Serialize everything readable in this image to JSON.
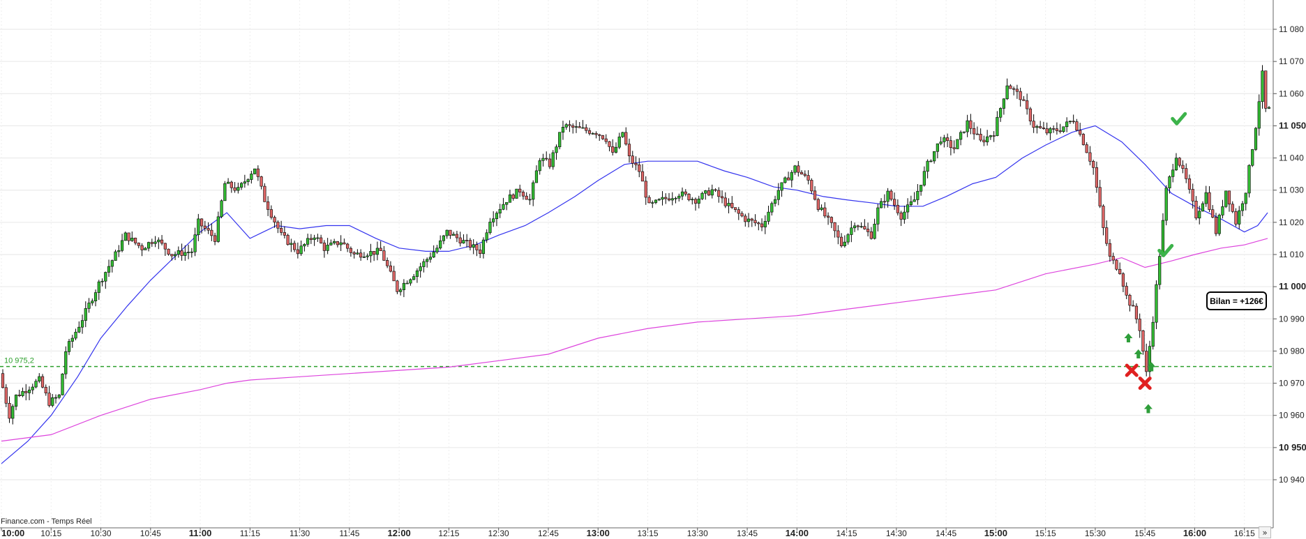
{
  "chart_data": {
    "type": "candlestick",
    "source_label": "Finance.com - Temps Réel",
    "reference_line": {
      "value": 10975.2,
      "label": "10 975,2",
      "color": "#2ca02c"
    },
    "bilan_label": "Bilan = +126€",
    "x_range": [
      "10:00",
      "16:22"
    ],
    "y_range": [
      10930,
      11088
    ],
    "x_ticks": [
      {
        "time": "10:00",
        "label": "10:00",
        "bold": true
      },
      {
        "time": "10:15",
        "label": "10:15",
        "bold": false
      },
      {
        "time": "10:30",
        "label": "10:30",
        "bold": false
      },
      {
        "time": "10:45",
        "label": "10:45",
        "bold": false
      },
      {
        "time": "11:00",
        "label": "11:00",
        "bold": true
      },
      {
        "time": "11:15",
        "label": "11:15",
        "bold": false
      },
      {
        "time": "11:30",
        "label": "11:30",
        "bold": false
      },
      {
        "time": "11:45",
        "label": "11:45",
        "bold": false
      },
      {
        "time": "12:00",
        "label": "12:00",
        "bold": true
      },
      {
        "time": "12:15",
        "label": "12:15",
        "bold": false
      },
      {
        "time": "12:30",
        "label": "12:30",
        "bold": false
      },
      {
        "time": "12:45",
        "label": "12:45",
        "bold": false
      },
      {
        "time": "13:00",
        "label": "13:00",
        "bold": true
      },
      {
        "time": "13:15",
        "label": "13:15",
        "bold": false
      },
      {
        "time": "13:30",
        "label": "13:30",
        "bold": false
      },
      {
        "time": "13:45",
        "label": "13:45",
        "bold": false
      },
      {
        "time": "14:00",
        "label": "14:00",
        "bold": true
      },
      {
        "time": "14:15",
        "label": "14:15",
        "bold": false
      },
      {
        "time": "14:30",
        "label": "14:30",
        "bold": false
      },
      {
        "time": "14:45",
        "label": "14:45",
        "bold": false
      },
      {
        "time": "15:00",
        "label": "15:00",
        "bold": true
      },
      {
        "time": "15:15",
        "label": "15:15",
        "bold": false
      },
      {
        "time": "15:30",
        "label": "15:30",
        "bold": false
      },
      {
        "time": "15:45",
        "label": "15:45",
        "bold": false
      },
      {
        "time": "16:00",
        "label": "16:00",
        "bold": true
      },
      {
        "time": "16:15",
        "label": "16:15",
        "bold": false
      }
    ],
    "y_ticks": [
      {
        "value": 11080,
        "label": "11 080",
        "bold": false
      },
      {
        "value": 11070,
        "label": "11 070",
        "bold": false
      },
      {
        "value": 11060,
        "label": "11 060",
        "bold": false
      },
      {
        "value": 11050,
        "label": "11 050",
        "bold": true
      },
      {
        "value": 11040,
        "label": "11 040",
        "bold": false
      },
      {
        "value": 11030,
        "label": "11 030",
        "bold": false
      },
      {
        "value": 11020,
        "label": "11 020",
        "bold": false
      },
      {
        "value": 11010,
        "label": "11 010",
        "bold": false
      },
      {
        "value": 11000,
        "label": "11 000",
        "bold": true
      },
      {
        "value": 10990,
        "label": "10 990",
        "bold": false
      },
      {
        "value": 10980,
        "label": "10 980",
        "bold": false
      },
      {
        "value": 10970,
        "label": "10 970",
        "bold": false
      },
      {
        "value": 10960,
        "label": "10 960",
        "bold": false
      },
      {
        "value": 10950,
        "label": "10 950",
        "bold": true
      },
      {
        "value": 10940,
        "label": "10 940",
        "bold": false
      }
    ],
    "price_path": [
      [
        "10:00",
        10973
      ],
      [
        "10:03",
        10960
      ],
      [
        "10:05",
        10966
      ],
      [
        "10:08",
        10968
      ],
      [
        "10:12",
        10971
      ],
      [
        "10:15",
        10964
      ],
      [
        "10:18",
        10966
      ],
      [
        "10:20",
        10980
      ],
      [
        "10:25",
        10990
      ],
      [
        "10:30",
        11001
      ],
      [
        "10:35",
        11010
      ],
      [
        "10:38",
        11016
      ],
      [
        "10:43",
        11012
      ],
      [
        "10:47",
        11015
      ],
      [
        "10:52",
        11010
      ],
      [
        "10:58",
        11011
      ],
      [
        "11:00",
        11020
      ],
      [
        "11:05",
        11015
      ],
      [
        "11:08",
        11032
      ],
      [
        "11:12",
        11030
      ],
      [
        "11:17",
        11037
      ],
      [
        "11:20",
        11027
      ],
      [
        "11:25",
        11016
      ],
      [
        "11:30",
        11011
      ],
      [
        "11:35",
        11016
      ],
      [
        "11:38",
        11012
      ],
      [
        "11:43",
        11014
      ],
      [
        "11:47",
        11010
      ],
      [
        "11:55",
        11011
      ],
      [
        "12:00",
        10999
      ],
      [
        "12:05",
        11004
      ],
      [
        "12:12",
        11012
      ],
      [
        "12:15",
        11017
      ],
      [
        "12:20",
        11014
      ],
      [
        "12:25",
        11011
      ],
      [
        "12:28",
        11021
      ],
      [
        "12:33",
        11027
      ],
      [
        "12:37",
        11030
      ],
      [
        "12:40",
        11027
      ],
      [
        "12:43",
        11040
      ],
      [
        "12:46",
        11038
      ],
      [
        "12:50",
        11050
      ],
      [
        "12:55",
        11049
      ],
      [
        "13:00",
        11048
      ],
      [
        "13:03",
        11046
      ],
      [
        "13:05",
        11041
      ],
      [
        "13:08",
        11048
      ],
      [
        "13:10",
        11040
      ],
      [
        "13:13",
        11036
      ],
      [
        "13:16",
        11025
      ],
      [
        "13:20",
        11027
      ],
      [
        "13:25",
        11029
      ],
      [
        "13:30",
        11027
      ],
      [
        "13:35",
        11030
      ],
      [
        "13:40",
        11025
      ],
      [
        "13:45",
        11021
      ],
      [
        "13:50",
        11019
      ],
      [
        "13:55",
        11030
      ],
      [
        "14:00",
        11037
      ],
      [
        "14:04",
        11033
      ],
      [
        "14:07",
        11025
      ],
      [
        "14:11",
        11019
      ],
      [
        "14:14",
        11013
      ],
      [
        "14:18",
        11020
      ],
      [
        "14:23",
        11016
      ],
      [
        "14:25",
        11024
      ],
      [
        "14:28",
        11029
      ],
      [
        "14:32",
        11022
      ],
      [
        "14:36",
        11027
      ],
      [
        "14:40",
        11038
      ],
      [
        "14:44",
        11046
      ],
      [
        "14:48",
        11043
      ],
      [
        "14:52",
        11051
      ],
      [
        "14:56",
        11045
      ],
      [
        "15:00",
        11048
      ],
      [
        "15:04",
        11063
      ],
      [
        "15:08",
        11059
      ],
      [
        "15:12",
        11050
      ],
      [
        "15:16",
        11048
      ],
      [
        "15:20",
        11049
      ],
      [
        "15:24",
        11052
      ],
      [
        "15:27",
        11045
      ],
      [
        "15:30",
        11037
      ],
      [
        "15:33",
        11018
      ],
      [
        "15:35",
        11009
      ],
      [
        "15:38",
        11005
      ],
      [
        "15:40",
        10997
      ],
      [
        "15:42",
        10993
      ],
      [
        "15:44",
        10987
      ],
      [
        "15:46",
        10973
      ],
      [
        "15:48",
        10990
      ],
      [
        "15:50",
        11010
      ],
      [
        "15:52",
        11030
      ],
      [
        "15:55",
        11041
      ],
      [
        "15:58",
        11033
      ],
      [
        "16:01",
        11022
      ],
      [
        "16:04",
        11029
      ],
      [
        "16:07",
        11017
      ],
      [
        "16:10",
        11030
      ],
      [
        "16:13",
        11020
      ],
      [
        "16:16",
        11030
      ],
      [
        "16:19",
        11050
      ],
      [
        "16:21",
        11066
      ],
      [
        "16:22",
        11055
      ]
    ],
    "series": [
      {
        "name": "",
        "color": "#3333ee",
        "points": [
          [
            "10:00",
            10945
          ],
          [
            "10:08",
            10952
          ],
          [
            "10:15",
            10960
          ],
          [
            "10:23",
            10972
          ],
          [
            "10:30",
            10984
          ],
          [
            "10:38",
            10994
          ],
          [
            "10:45",
            11002
          ],
          [
            "10:53",
            11010
          ],
          [
            "11:00",
            11017
          ],
          [
            "11:08",
            11023
          ],
          [
            "11:15",
            11015
          ],
          [
            "11:23",
            11019
          ],
          [
            "11:30",
            11018
          ],
          [
            "11:38",
            11019
          ],
          [
            "11:45",
            11019
          ],
          [
            "11:53",
            11015
          ],
          [
            "12:00",
            11012
          ],
          [
            "12:08",
            11011
          ],
          [
            "12:15",
            11011
          ],
          [
            "12:23",
            11013
          ],
          [
            "12:30",
            11016
          ],
          [
            "12:38",
            11019
          ],
          [
            "12:45",
            11023
          ],
          [
            "12:53",
            11028
          ],
          [
            "13:00",
            11033
          ],
          [
            "13:08",
            11038
          ],
          [
            "13:15",
            11039
          ],
          [
            "13:23",
            11039
          ],
          [
            "13:30",
            11039
          ],
          [
            "13:38",
            11036
          ],
          [
            "13:45",
            11034
          ],
          [
            "13:53",
            11031
          ],
          [
            "14:00",
            11030
          ],
          [
            "14:08",
            11028
          ],
          [
            "14:15",
            11027
          ],
          [
            "14:23",
            11026
          ],
          [
            "14:30",
            11025
          ],
          [
            "14:38",
            11025
          ],
          [
            "14:45",
            11028
          ],
          [
            "14:53",
            11032
          ],
          [
            "15:00",
            11034
          ],
          [
            "15:08",
            11040
          ],
          [
            "15:15",
            11044
          ],
          [
            "15:23",
            11048
          ],
          [
            "15:30",
            11050
          ],
          [
            "15:38",
            11045
          ],
          [
            "15:45",
            11038
          ],
          [
            "15:53",
            11029
          ],
          [
            "16:00",
            11025
          ],
          [
            "16:08",
            11021
          ],
          [
            "16:15",
            11017
          ],
          [
            "16:19",
            11019
          ],
          [
            "16:22",
            11023
          ]
        ]
      },
      {
        "name": "",
        "color": "#dd44dd",
        "points": [
          [
            "10:00",
            10952
          ],
          [
            "10:15",
            10954
          ],
          [
            "10:30",
            10960
          ],
          [
            "10:45",
            10965
          ],
          [
            "11:00",
            10968
          ],
          [
            "11:08",
            10970
          ],
          [
            "11:15",
            10971
          ],
          [
            "11:30",
            10972
          ],
          [
            "11:45",
            10973
          ],
          [
            "12:00",
            10974
          ],
          [
            "12:15",
            10975
          ],
          [
            "12:30",
            10977
          ],
          [
            "12:45",
            10979
          ],
          [
            "13:00",
            10984
          ],
          [
            "13:15",
            10987
          ],
          [
            "13:30",
            10989
          ],
          [
            "13:45",
            10990
          ],
          [
            "14:00",
            10991
          ],
          [
            "14:15",
            10993
          ],
          [
            "14:30",
            10995
          ],
          [
            "14:45",
            10997
          ],
          [
            "15:00",
            10999
          ],
          [
            "15:15",
            11004
          ],
          [
            "15:30",
            11007
          ],
          [
            "15:38",
            11009
          ],
          [
            "15:45",
            11006
          ],
          [
            "15:53",
            11008
          ],
          [
            "16:00",
            11010
          ],
          [
            "16:08",
            11012
          ],
          [
            "16:15",
            11013
          ],
          [
            "16:22",
            11015
          ]
        ]
      }
    ],
    "markers": [
      {
        "type": "buy-arrow",
        "time": "15:40",
        "value": 10984
      },
      {
        "type": "buy-arrow",
        "time": "15:43",
        "value": 10979
      },
      {
        "type": "buy-arrow",
        "time": "15:47",
        "value": 10975
      },
      {
        "type": "buy-arrow",
        "time": "15:46",
        "value": 10962
      },
      {
        "type": "stop-cross",
        "time": "15:41",
        "value": 10974
      },
      {
        "type": "stop-cross",
        "time": "15:45",
        "value": 10970
      },
      {
        "type": "target-check",
        "time": "15:51",
        "value": 11011
      },
      {
        "type": "target-check",
        "time": "15:55",
        "value": 11052
      }
    ]
  }
}
